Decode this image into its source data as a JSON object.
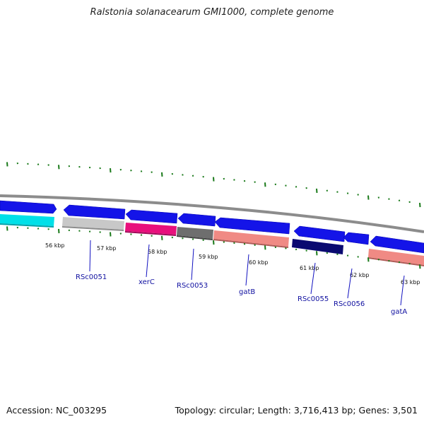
{
  "title": "Ralstonia solanacearum GMI1000, complete genome",
  "footer": {
    "accession": "Accession: NC_003295",
    "summary": "Topology: circular; Length: 3,716,413 bp; Genes: 3,501"
  },
  "colors": {
    "backbone": "#8c8c8c",
    "forward_strand": "#0000ee",
    "tick": "#1a7a1a",
    "gene_label": "#1010a0"
  },
  "tick_labels": [
    "56 kbp",
    "57 kbp",
    "58 kbp",
    "59 kbp",
    "60 kbp",
    "61 kbp",
    "62 kbp",
    "63 kbp"
  ],
  "gene_labels": [
    "RSc0051",
    "xerC",
    "RSc0053",
    "gatB",
    "RSc0055",
    "RSc0056",
    "gatA"
  ],
  "features": {
    "forward": [
      {
        "direction": "right",
        "color": "#1414e8"
      },
      {
        "direction": "left",
        "color": "#1414e8"
      },
      {
        "direction": "left",
        "color": "#1414e8"
      },
      {
        "direction": "left",
        "color": "#1414e8"
      },
      {
        "direction": "left",
        "color": "#1414e8"
      },
      {
        "direction": "left",
        "color": "#1414e8"
      },
      {
        "direction": "left",
        "color": "#1414e8"
      },
      {
        "direction": "left",
        "color": "#1414e8"
      }
    ],
    "category": [
      {
        "color": "#00e0e8"
      },
      {
        "color": "#c8c8c8"
      },
      {
        "color": "#e8107c"
      },
      {
        "color": "#6e6e6e"
      },
      {
        "color": "#f08a84"
      },
      {
        "color": "#0a0a70"
      },
      {
        "color": "#f08a84"
      }
    ]
  }
}
